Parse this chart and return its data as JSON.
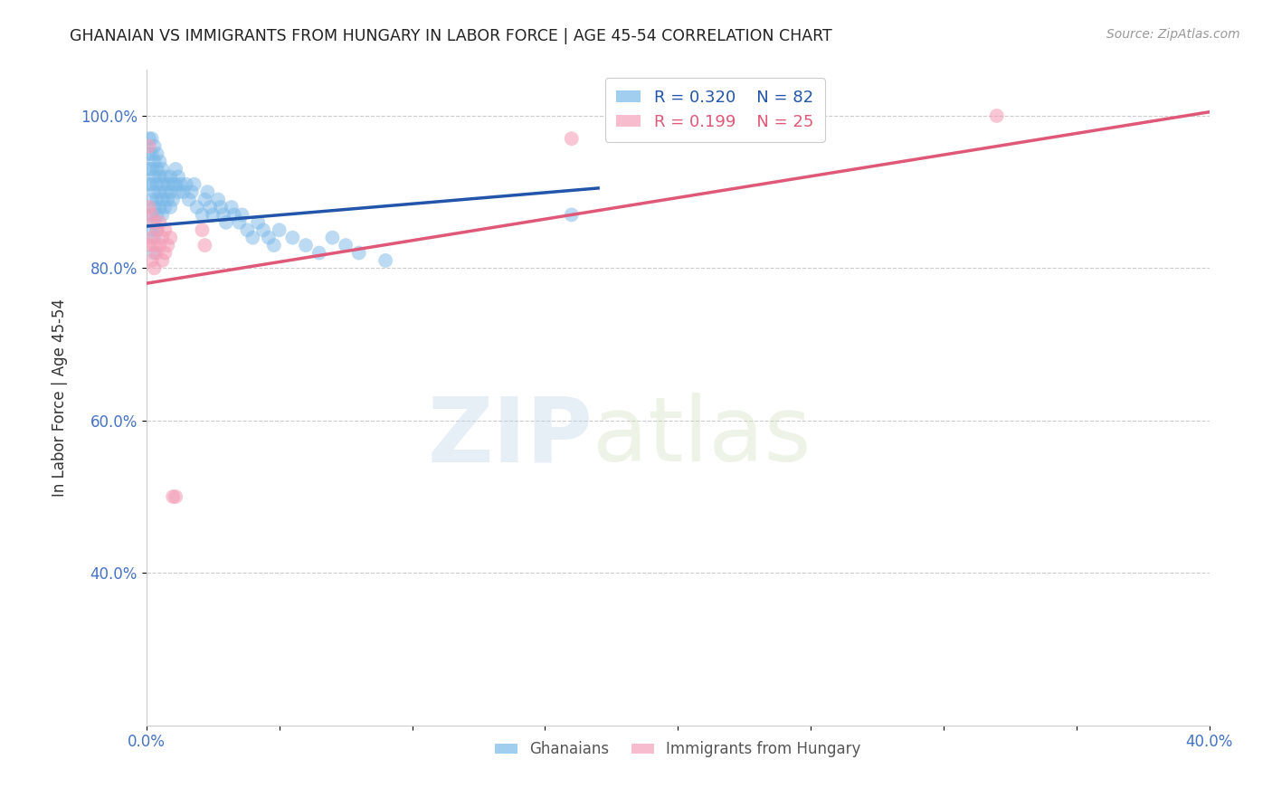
{
  "title": "GHANAIAN VS IMMIGRANTS FROM HUNGARY IN LABOR FORCE | AGE 45-54 CORRELATION CHART",
  "source": "Source: ZipAtlas.com",
  "ylabel": "In Labor Force | Age 45-54",
  "xlim": [
    0.0,
    0.4
  ],
  "ylim": [
    0.2,
    1.06
  ],
  "yticks": [
    0.4,
    0.6,
    0.8,
    1.0
  ],
  "ytick_labels": [
    "40.0%",
    "60.0%",
    "80.0%",
    "100.0%"
  ],
  "xticks": [
    0.0,
    0.05,
    0.1,
    0.15,
    0.2,
    0.25,
    0.3,
    0.35,
    0.4
  ],
  "xtick_labels": [
    "0.0%",
    "",
    "",
    "",
    "",
    "",
    "",
    "",
    "40.0%"
  ],
  "ghanaian_R": 0.32,
  "ghanaian_N": 82,
  "hungary_R": 0.199,
  "hungary_N": 25,
  "blue_color": "#7ab8e8",
  "pink_color": "#f4a0b8",
  "blue_line_color": "#2255aa",
  "pink_line_color": "#e05878",
  "legend_label_blue": "Ghanaians",
  "legend_label_pink": "Immigrants from Hungary",
  "watermark_zip": "ZIP",
  "watermark_atlas": "atlas",
  "background_color": "#ffffff",
  "grid_color": "#cccccc",
  "tick_color": "#4472c4",
  "axis_color": "#cccccc",
  "blue_scatter_x": [
    0.001,
    0.001,
    0.001,
    0.001,
    0.002,
    0.002,
    0.002,
    0.002,
    0.002,
    0.002,
    0.002,
    0.003,
    0.003,
    0.003,
    0.003,
    0.003,
    0.003,
    0.003,
    0.003,
    0.004,
    0.004,
    0.004,
    0.004,
    0.004,
    0.004,
    0.005,
    0.005,
    0.005,
    0.005,
    0.006,
    0.006,
    0.006,
    0.006,
    0.007,
    0.007,
    0.007,
    0.008,
    0.008,
    0.009,
    0.009,
    0.009,
    0.01,
    0.01,
    0.011,
    0.011,
    0.012,
    0.012,
    0.013,
    0.014,
    0.015,
    0.016,
    0.017,
    0.018,
    0.019,
    0.021,
    0.022,
    0.023,
    0.024,
    0.025,
    0.027,
    0.028,
    0.029,
    0.03,
    0.032,
    0.033,
    0.035,
    0.036,
    0.038,
    0.04,
    0.042,
    0.044,
    0.046,
    0.048,
    0.05,
    0.055,
    0.06,
    0.065,
    0.07,
    0.075,
    0.08,
    0.09,
    0.16
  ],
  "blue_scatter_y": [
    0.97,
    0.95,
    0.93,
    0.91,
    0.97,
    0.95,
    0.93,
    0.91,
    0.89,
    0.87,
    0.85,
    0.96,
    0.94,
    0.92,
    0.9,
    0.88,
    0.86,
    0.84,
    0.82,
    0.95,
    0.93,
    0.91,
    0.89,
    0.87,
    0.85,
    0.94,
    0.92,
    0.9,
    0.88,
    0.93,
    0.91,
    0.89,
    0.87,
    0.92,
    0.9,
    0.88,
    0.91,
    0.89,
    0.92,
    0.9,
    0.88,
    0.91,
    0.89,
    0.93,
    0.91,
    0.92,
    0.9,
    0.91,
    0.9,
    0.91,
    0.89,
    0.9,
    0.91,
    0.88,
    0.87,
    0.89,
    0.9,
    0.88,
    0.87,
    0.89,
    0.88,
    0.87,
    0.86,
    0.88,
    0.87,
    0.86,
    0.87,
    0.85,
    0.84,
    0.86,
    0.85,
    0.84,
    0.83,
    0.85,
    0.84,
    0.83,
    0.82,
    0.84,
    0.83,
    0.82,
    0.81,
    0.87
  ],
  "pink_scatter_x": [
    0.001,
    0.001,
    0.001,
    0.002,
    0.002,
    0.002,
    0.003,
    0.003,
    0.003,
    0.004,
    0.004,
    0.005,
    0.005,
    0.006,
    0.006,
    0.007,
    0.007,
    0.008,
    0.009,
    0.01,
    0.011,
    0.021,
    0.022,
    0.16,
    0.32
  ],
  "pink_scatter_y": [
    0.96,
    0.88,
    0.83,
    0.87,
    0.84,
    0.81,
    0.86,
    0.83,
    0.8,
    0.85,
    0.82,
    0.86,
    0.83,
    0.84,
    0.81,
    0.85,
    0.82,
    0.83,
    0.84,
    0.5,
    0.5,
    0.85,
    0.83,
    0.97,
    1.0
  ],
  "blue_trend_x": [
    0.0,
    0.17
  ],
  "blue_trend_y": [
    0.855,
    0.905
  ],
  "pink_trend_x": [
    0.0,
    0.4
  ],
  "pink_trend_y": [
    0.78,
    1.005
  ]
}
